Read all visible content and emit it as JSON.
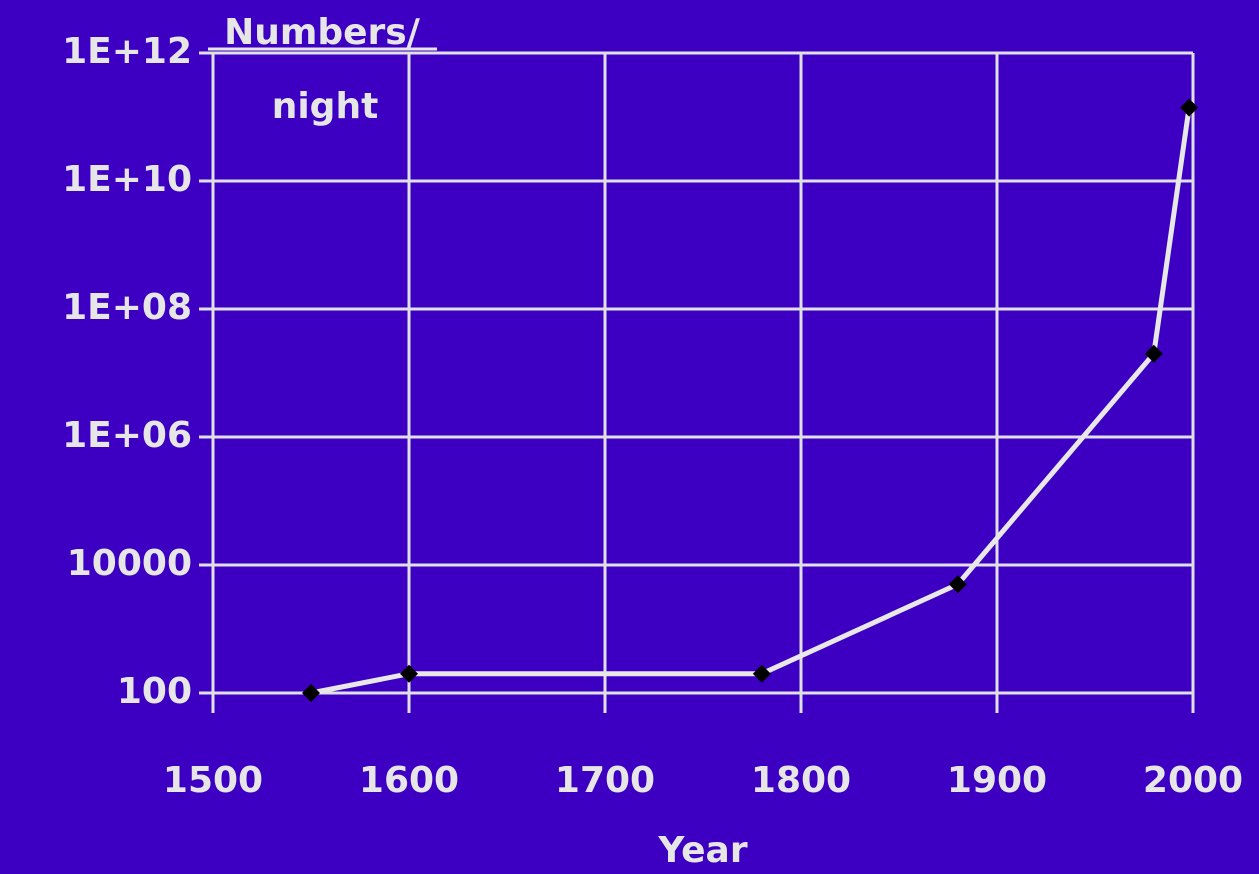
{
  "chart_data": {
    "type": "line",
    "ylabel": [
      "Numbers/",
      "night"
    ],
    "xlabel": "Year",
    "x": [
      1550,
      1600,
      1780,
      1880,
      1980,
      1998
    ],
    "series": [
      {
        "name": null,
        "color": "#e8e8e8",
        "marker_color": "#000000",
        "values": [
          100,
          200,
          200,
          5000,
          20000000,
          140000000000
        ]
      }
    ],
    "xlim": [
      1500,
      2000
    ],
    "xticks": [
      1500,
      1600,
      1700,
      1800,
      1900,
      2000
    ],
    "ylim": [
      100,
      1000000000000
    ],
    "yticks": [
      100,
      10000,
      {
        "value": 1000000,
        "label": "1E+06"
      },
      {
        "value": 100000000,
        "label": "1E+08"
      },
      {
        "value": 10000000000,
        "label": "1E+10"
      },
      {
        "value": 1000000000000,
        "label": "1E+12"
      }
    ],
    "log_y": true,
    "grid": true,
    "background": "#3d00c3",
    "grid_color": "#e0e0e0"
  }
}
